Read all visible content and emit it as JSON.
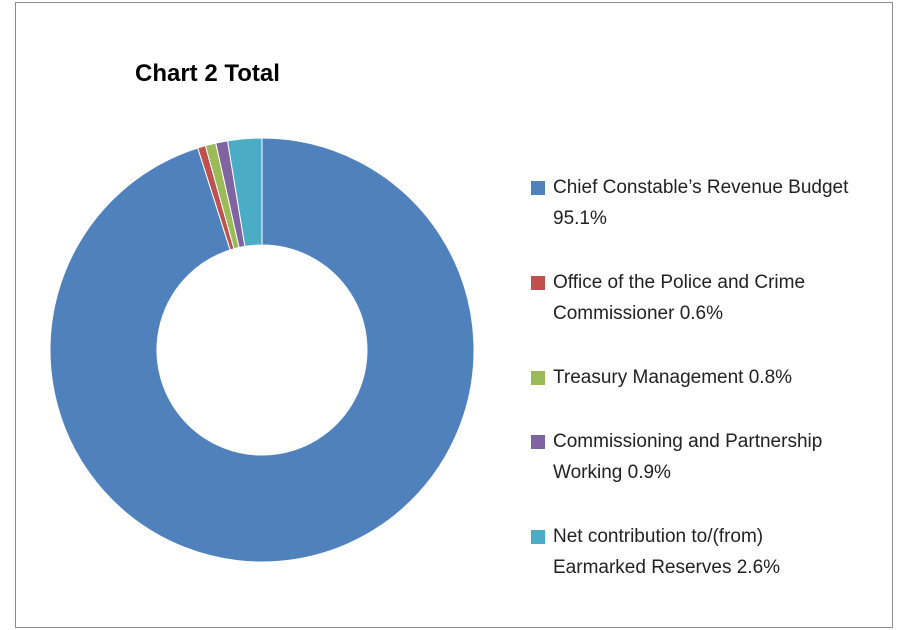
{
  "chart_data": {
    "type": "donut",
    "title": "Chart 2 Total",
    "categories": [
      "Chief Constable’s Revenue Budget",
      "Office of the Police and Crime Commissioner",
      "Treasury Management",
      "Commissioning and Partnership Working",
      "Net contribution to/(from) Earmarked Reserves"
    ],
    "values": [
      95.1,
      0.6,
      0.8,
      0.9,
      2.6
    ],
    "value_labels": [
      "95.1%",
      "0.6%",
      "0.8%",
      "0.9%",
      "2.6%"
    ],
    "colors": [
      "#4f81bd",
      "#c0504d",
      "#9bbb59",
      "#8064a2",
      "#4bacc6"
    ],
    "legend": "right"
  }
}
